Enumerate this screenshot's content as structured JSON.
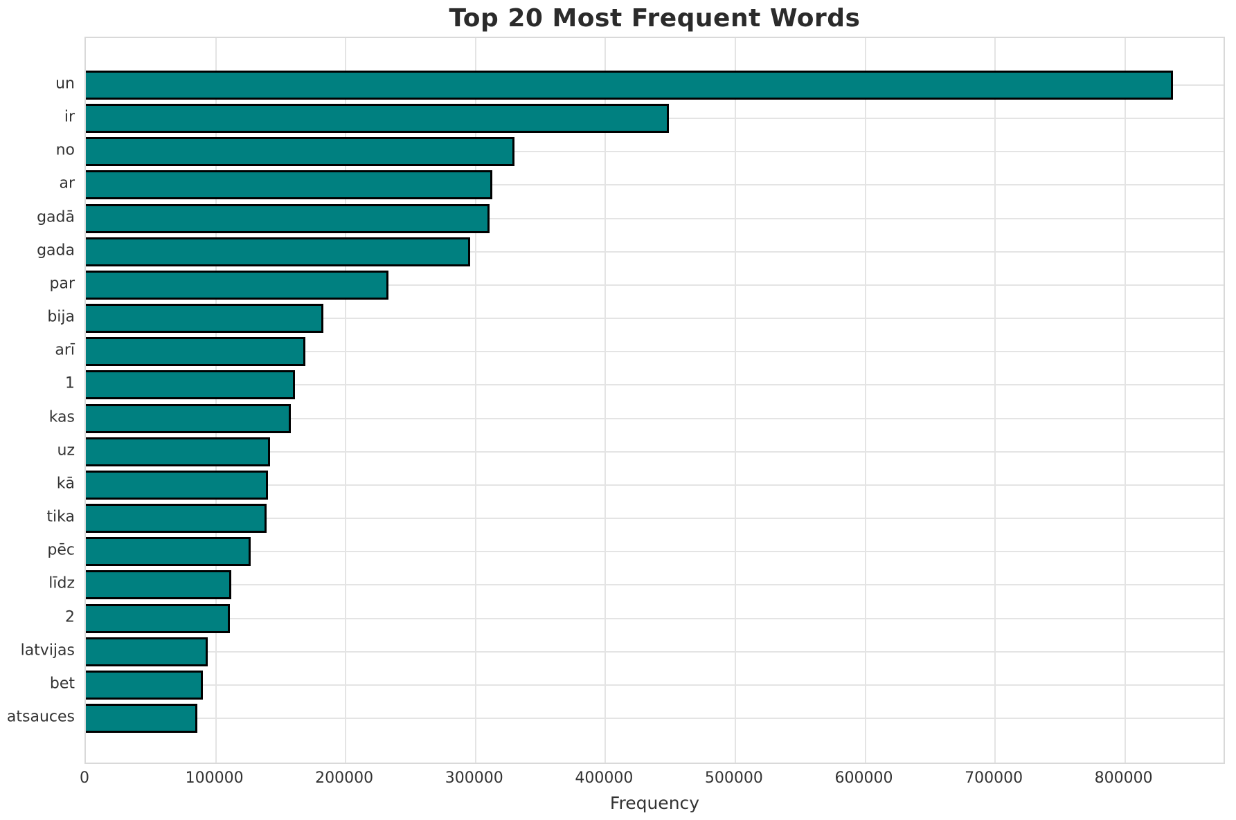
{
  "chart_data": {
    "type": "bar",
    "orientation": "horizontal",
    "title": "Top 20 Most Frequent Words",
    "xlabel": "Frequency",
    "ylabel": "",
    "categories": [
      "un",
      "ir",
      "no",
      "ar",
      "gadā",
      "gada",
      "par",
      "bija",
      "arī",
      "1",
      "kas",
      "uz",
      "kā",
      "tika",
      "pēc",
      "līdz",
      "2",
      "latvijas",
      "bet",
      "atsauces"
    ],
    "values": [
      837000,
      449000,
      330000,
      313000,
      311000,
      296000,
      233000,
      183000,
      169000,
      161000,
      158000,
      142000,
      140000,
      139000,
      127000,
      112000,
      111000,
      94000,
      90000,
      86000
    ],
    "xlim": [
      0,
      878000
    ],
    "xticks": [
      0,
      100000,
      200000,
      300000,
      400000,
      500000,
      600000,
      700000,
      800000
    ],
    "xtick_labels": [
      "0",
      "100000",
      "200000",
      "300000",
      "400000",
      "500000",
      "600000",
      "700000",
      "800000"
    ],
    "grid": true,
    "legend": "none",
    "colors": {
      "bar_fill": "#008080",
      "bar_edge": "#000000",
      "grid": "#e4e4e4",
      "spine": "#d9d9d9",
      "text": "#333333",
      "title": "#2b2b2b",
      "background": "#ffffff"
    }
  }
}
